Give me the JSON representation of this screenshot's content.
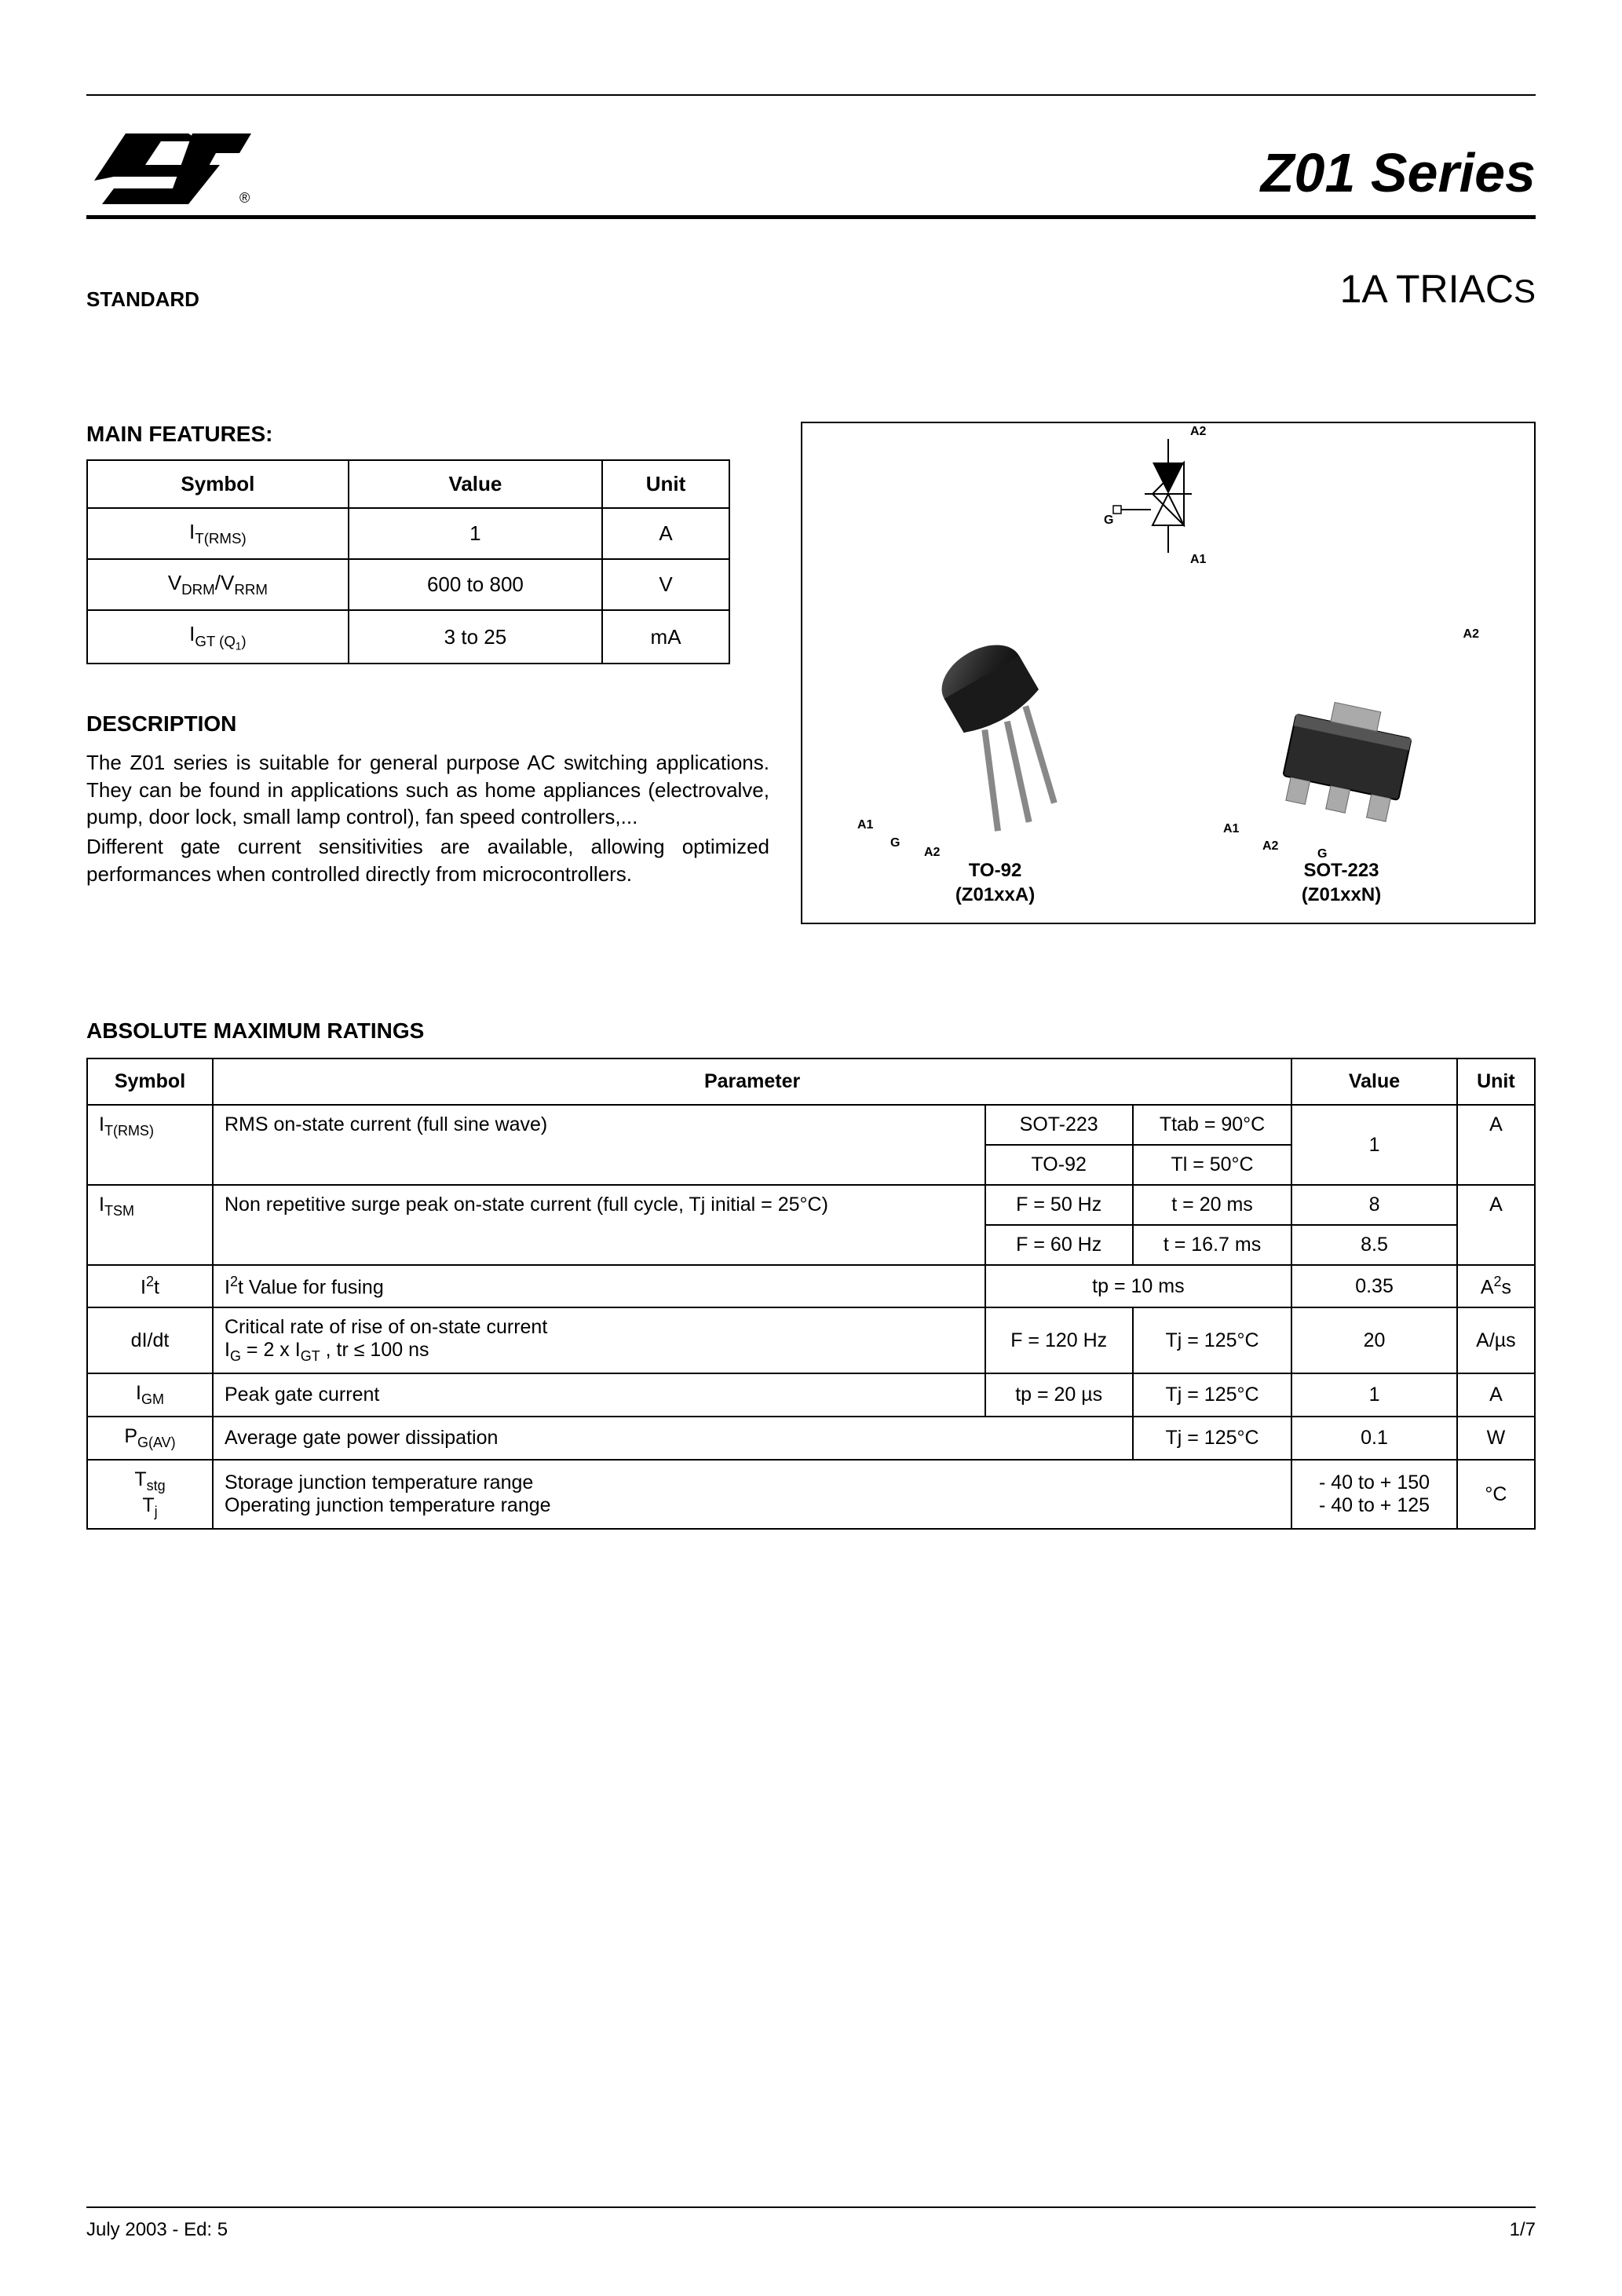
{
  "header": {
    "product_title": "Z01 Series",
    "standard_label": "STANDARD",
    "subtitle_main": "1A TRIAC",
    "subtitle_suffix": "S"
  },
  "main_features": {
    "heading": "MAIN FEATURES:",
    "columns": [
      "Symbol",
      "Value",
      "Unit"
    ],
    "rows": [
      {
        "symbol_html": "I<sub>T(RMS)</sub>",
        "value": "1",
        "unit": "A"
      },
      {
        "symbol_html": "V<sub>DRM</sub>/V<sub>RRM</sub>",
        "value": "600 to 800",
        "unit": "V"
      },
      {
        "symbol_html": "I<sub>GT (Q<sub>1</sub>)</sub>",
        "value": "3 to 25",
        "unit": "mA"
      }
    ]
  },
  "description": {
    "heading": "DESCRIPTION",
    "p1": "The Z01 series is suitable for general purpose AC switching applications. They can be found in applications such as home appliances (electrovalve, pump, door lock, small lamp control), fan speed controllers,...",
    "p2": "Different gate current sensitivities are available, allowing optimized performances when controlled directly from microcontrollers."
  },
  "packages": {
    "triac_pins": {
      "a2_top": "A2",
      "g": "G",
      "a1": "A1"
    },
    "to92": {
      "name": "TO-92",
      "part": "(Z01xxA)",
      "pins": {
        "a1": "A1",
        "g": "G",
        "a2": "A2"
      }
    },
    "sot223": {
      "name": "SOT-223",
      "part": "(Z01xxN)",
      "pins": {
        "a2": "A2",
        "a1": "A1",
        "g": "G"
      }
    }
  },
  "absolute": {
    "heading": "ABSOLUTE MAXIMUM RATINGS",
    "columns": [
      "Symbol",
      "Parameter",
      "Value",
      "Unit"
    ],
    "rows": {
      "itrms": {
        "symbol": "I<sub>T(RMS)</sub>",
        "param": "RMS on-state current (full sine wave)",
        "cond1a": "SOT-223",
        "cond1b": "Ttab = 90°C",
        "cond2a": "TO-92",
        "cond2b": "Tl = 50°C",
        "value": "1",
        "unit": "A"
      },
      "itsm": {
        "symbol": "I<sub>TSM</sub>",
        "param": "Non repetitive surge peak on-state current  (full cycle, Tj initial = 25°C)",
        "cond1a": "F = 50 Hz",
        "cond1b": "t = 20 ms",
        "val1": "8",
        "cond2a": "F = 60 Hz",
        "cond2b": "t = 16.7 ms",
        "val2": "8.5",
        "unit": "A"
      },
      "i2t": {
        "symbol": "I<sup>2</sup>t",
        "param": "I<sup>2</sup>t Value for fusing",
        "cond": "tp = 10 ms",
        "value": "0.35",
        "unit": "A<sup>2</sup>s"
      },
      "didt": {
        "symbol": "dI/dt",
        "param": "Critical rate of rise of on-state current<br>I<sub>G</sub> = 2 x I<sub>GT</sub> , tr ≤ 100 ns",
        "cond1": "F = 120 Hz",
        "cond2": "Tj = 125°C",
        "value": "20",
        "unit": "A/µs"
      },
      "igm": {
        "symbol": "I<sub>GM</sub>",
        "param": "Peak gate current",
        "cond1": "tp = 20 µs",
        "cond2": "Tj = 125°C",
        "value": "1",
        "unit": "A"
      },
      "pgav": {
        "symbol": "P<sub>G(AV)</sub>",
        "param": "Average gate power dissipation",
        "cond": "Tj = 125°C",
        "value": "0.1",
        "unit": "W"
      },
      "temp": {
        "symbol": "T<sub>stg</sub><br>T<sub>j</sub>",
        "param": "Storage junction temperature range<br>Operating junction temperature range",
        "value": "- 40 to + 150<br>- 40 to + 125",
        "unit": "°C"
      }
    }
  },
  "footer": {
    "date": "July 2003 - Ed: 5",
    "page": "1/7"
  },
  "colors": {
    "text": "#000000",
    "background": "#ffffff",
    "rule": "#000000"
  }
}
